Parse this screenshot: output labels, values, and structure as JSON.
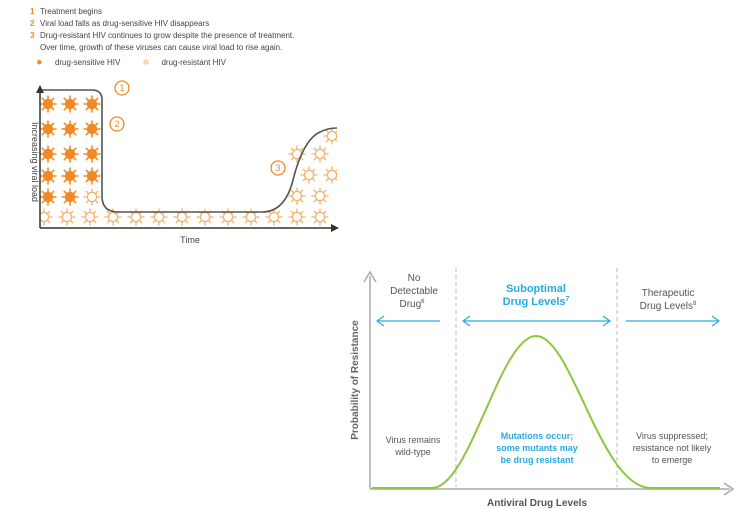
{
  "legend": {
    "steps": [
      {
        "num": "1",
        "text": "Treatment begins"
      },
      {
        "num": "2",
        "text": "Viral load falls as drug-sensitive HIV disappears"
      },
      {
        "num": "3",
        "text": "Drug-resistant HIV continues to grow despite the presence of treatment."
      },
      {
        "num": "",
        "text": "Over time, growth of these viruses can cause viral load to rise again."
      }
    ],
    "key_sensitive": "drug-sensitive HIV",
    "key_resistant": "drug-resistant HIV"
  },
  "viral_chart": {
    "ylabel": "Increasing viral load",
    "xlabel": "Time",
    "markers": [
      "1",
      "2",
      "3"
    ],
    "colors": {
      "sensitive": "#f08a24",
      "resistant": "#f5b06a",
      "curve": "#555555"
    }
  },
  "resistance_chart": {
    "ylabel": "Probability of Resistance",
    "xlabel": "Antiviral Drug Levels",
    "zones": [
      {
        "title_line1": "No",
        "title_line2": "Detectable",
        "title_line3": "Drug",
        "sup": "6",
        "note_line1": "Virus remains",
        "note_line2": "wild-type",
        "note_line3": ""
      },
      {
        "title_line1": "Suboptimal",
        "title_line2": "Drug Levels",
        "sup": "7",
        "note_line1": "Mutations occur;",
        "note_line2": "some mutants may",
        "note_line3": "be drug resistant"
      },
      {
        "title_line1": "Therapeutic",
        "title_line2": "Drug Levels",
        "sup": "8",
        "note_line1": "Virus suppressed;",
        "note_line2": "resistance not likely",
        "note_line3": "to emerge"
      }
    ],
    "colors": {
      "curve": "#8dc63f",
      "arrow": "#29abe2",
      "highlight": "#29abe2",
      "axis": "#aaaaaa"
    }
  }
}
